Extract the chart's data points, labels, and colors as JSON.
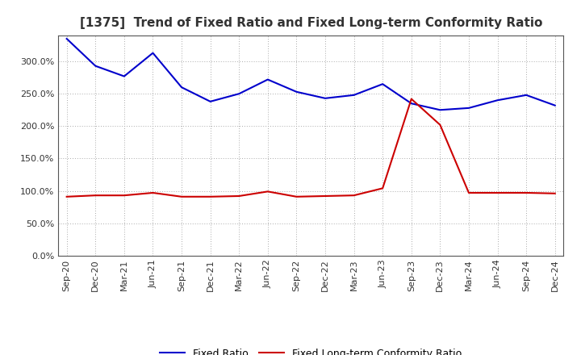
{
  "title": "[1375]  Trend of Fixed Ratio and Fixed Long-term Conformity Ratio",
  "x_labels": [
    "Sep-20",
    "Dec-20",
    "Mar-21",
    "Jun-21",
    "Sep-21",
    "Dec-21",
    "Mar-22",
    "Jun-22",
    "Sep-22",
    "Dec-22",
    "Mar-23",
    "Jun-23",
    "Sep-23",
    "Dec-23",
    "Mar-24",
    "Jun-24",
    "Sep-24",
    "Dec-24"
  ],
  "fixed_ratio": [
    335,
    293,
    277,
    313,
    260,
    238,
    250,
    272,
    253,
    243,
    248,
    265,
    235,
    225,
    228,
    240,
    248,
    232
  ],
  "fixed_lt_ratio": [
    91,
    93,
    93,
    97,
    91,
    91,
    92,
    99,
    91,
    92,
    93,
    104,
    242,
    202,
    97,
    97,
    97,
    96
  ],
  "fixed_ratio_color": "#0000CC",
  "fixed_lt_ratio_color": "#CC0000",
  "ylim": [
    0,
    340
  ],
  "yticks": [
    0,
    50,
    100,
    150,
    200,
    250,
    300
  ],
  "background_color": "#ffffff",
  "plot_bg_color": "#ffffff",
  "grid_color": "#aaaaaa",
  "legend_fixed_ratio": "Fixed Ratio",
  "legend_fixed_lt_ratio": "Fixed Long-term Conformity Ratio"
}
